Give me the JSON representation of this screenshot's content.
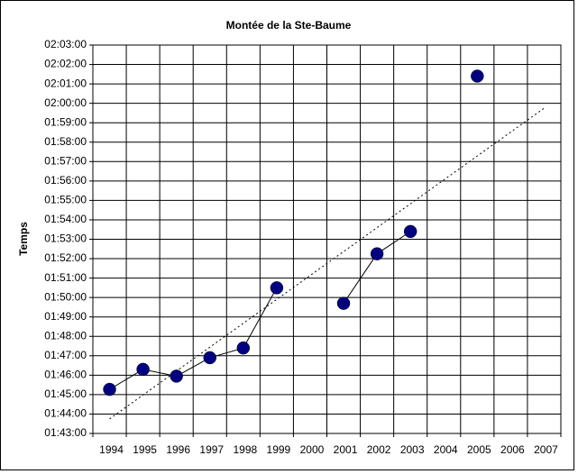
{
  "chart_data": {
    "type": "line",
    "title": "Montée de la Ste-Baume",
    "y_label": "Temps",
    "categories": [
      "1994",
      "1995",
      "1996",
      "1997",
      "1998",
      "1999",
      "2000",
      "2001",
      "2002",
      "2003",
      "2004",
      "2005",
      "2006",
      "2007"
    ],
    "series": [
      {
        "color": "#000080",
        "values": [
          105.27,
          106.3,
          105.95,
          106.9,
          107.4,
          110.5,
          null,
          109.7,
          112.25,
          113.4,
          null,
          121.4,
          null,
          null
        ]
      }
    ],
    "trendline": {
      "start": 103.75,
      "end": 119.75
    },
    "ylim": [
      103,
      123
    ],
    "yticks": [
      {
        "value": 103,
        "label": "01:43:00"
      },
      {
        "value": 104,
        "label": "01:44:00"
      },
      {
        "value": 105,
        "label": "01:45:00"
      },
      {
        "value": 106,
        "label": "01:46:00"
      },
      {
        "value": 107,
        "label": "01:47:00"
      },
      {
        "value": 108,
        "label": "01:48:00"
      },
      {
        "value": 109,
        "label": "01:49:00"
      },
      {
        "value": 110,
        "label": "01:50:00"
      },
      {
        "value": 111,
        "label": "01:51:00"
      },
      {
        "value": 112,
        "label": "01:52:00"
      },
      {
        "value": 113,
        "label": "01:53:00"
      },
      {
        "value": 114,
        "label": "01:54:00"
      },
      {
        "value": 115,
        "label": "01:55:00"
      },
      {
        "value": 116,
        "label": "01:56:00"
      },
      {
        "value": 117,
        "label": "01:57:00"
      },
      {
        "value": 118,
        "label": "01:58:00"
      },
      {
        "value": 119,
        "label": "01:59:00"
      },
      {
        "value": 120,
        "label": "02:00:00"
      },
      {
        "value": 121,
        "label": "02:01:00"
      },
      {
        "value": 122,
        "label": "02:02:00"
      },
      {
        "value": 123,
        "label": "02:03:00"
      }
    ],
    "grid": true
  }
}
